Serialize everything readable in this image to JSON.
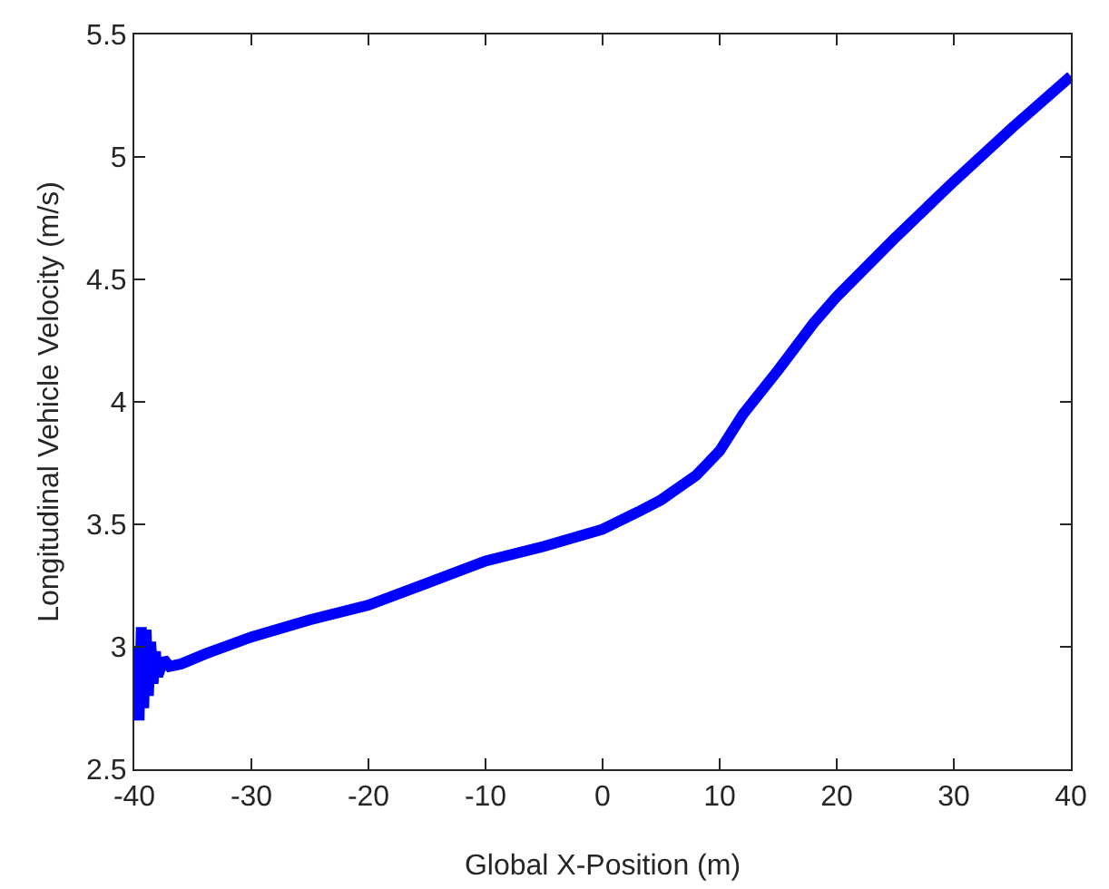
{
  "chart_data": {
    "type": "line",
    "xlabel": "Global X-Position (m)",
    "ylabel": "Longitudinal Vehicle Velocity (m/s)",
    "x": [
      -40,
      -39.8,
      -39.6,
      -39.4,
      -39.2,
      -39,
      -38.8,
      -38.6,
      -38.4,
      -38.2,
      -38,
      -37.5,
      -37,
      -36,
      -34,
      -30,
      -25,
      -20,
      -15,
      -10,
      -5,
      0,
      3,
      5,
      8,
      10,
      12,
      15,
      18,
      20,
      25,
      30,
      35,
      40
    ],
    "series": [
      {
        "color": "#0000ff",
        "values": [
          2.8,
          3.0,
          2.7,
          3.08,
          2.75,
          3.07,
          2.8,
          3.02,
          2.85,
          2.98,
          2.88,
          2.95,
          2.92,
          2.93,
          2.97,
          3.04,
          3.11,
          3.17,
          3.26,
          3.35,
          3.41,
          3.48,
          3.55,
          3.6,
          3.7,
          3.8,
          3.95,
          4.13,
          4.32,
          4.43,
          4.67,
          4.9,
          5.12,
          5.33
        ]
      }
    ],
    "xlim": [
      -40,
      40
    ],
    "xticks": [
      -40,
      -30,
      -20,
      -10,
      0,
      10,
      20,
      30,
      40
    ],
    "ylim": [
      2.5,
      5.5
    ],
    "yticks": [
      2.5,
      3,
      3.5,
      4,
      4.5,
      5,
      5.5
    ],
    "grid": false,
    "marker": "none",
    "line_style": "solid"
  }
}
